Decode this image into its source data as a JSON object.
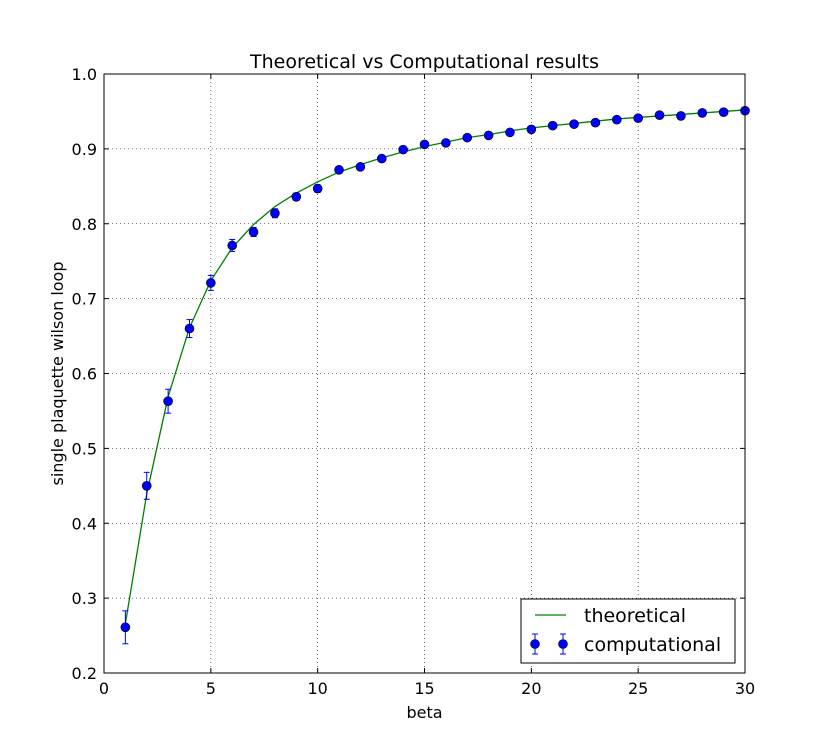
{
  "chart_data": {
    "type": "scatter",
    "title": "Theoretical vs Computational results",
    "xlabel": "beta",
    "ylabel": "single plaquette wilson loop",
    "xlim": [
      0,
      30
    ],
    "ylim": [
      0.2,
      1.0
    ],
    "xticks": [
      0,
      5,
      10,
      15,
      20,
      25,
      30
    ],
    "xtick_labels": [
      "0",
      "5",
      "10",
      "15",
      "20",
      "25",
      "30"
    ],
    "yticks": [
      0.2,
      0.3,
      0.4,
      0.5,
      0.6,
      0.7,
      0.8,
      0.9,
      1.0
    ],
    "ytick_labels": [
      "0.2",
      "0.3",
      "0.4",
      "0.5",
      "0.6",
      "0.7",
      "0.8",
      "0.9",
      "1.0"
    ],
    "grid": true,
    "legend_position": "bottom-right",
    "series": [
      {
        "name": "theoretical",
        "kind": "line",
        "color": "#008000",
        "x": [
          1,
          2,
          3,
          4,
          5,
          6,
          7,
          8,
          9,
          10,
          11,
          12,
          13,
          14,
          15,
          16,
          17,
          18,
          19,
          20,
          21,
          22,
          23,
          24,
          25,
          26,
          27,
          28,
          29,
          30
        ],
        "y": [
          0.266,
          0.439,
          0.569,
          0.661,
          0.724,
          0.768,
          0.799,
          0.823,
          0.841,
          0.856,
          0.869,
          0.879,
          0.888,
          0.896,
          0.903,
          0.909,
          0.915,
          0.919,
          0.924,
          0.928,
          0.931,
          0.934,
          0.937,
          0.94,
          0.942,
          0.944,
          0.946,
          0.948,
          0.95,
          0.952
        ]
      },
      {
        "name": "computational",
        "kind": "errorbar",
        "color": "#0000ff",
        "x": [
          1,
          2,
          3,
          4,
          5,
          6,
          7,
          8,
          9,
          10,
          11,
          12,
          13,
          14,
          15,
          16,
          17,
          18,
          19,
          20,
          21,
          22,
          23,
          24,
          25,
          26,
          27,
          28,
          29,
          30
        ],
        "y": [
          0.261,
          0.45,
          0.563,
          0.66,
          0.721,
          0.771,
          0.789,
          0.814,
          0.836,
          0.847,
          0.872,
          0.876,
          0.887,
          0.899,
          0.906,
          0.908,
          0.915,
          0.918,
          0.922,
          0.926,
          0.931,
          0.933,
          0.935,
          0.939,
          0.941,
          0.945,
          0.944,
          0.948,
          0.949,
          0.951
        ],
        "error": [
          0.022,
          0.018,
          0.016,
          0.012,
          0.01,
          0.008,
          0.006,
          0.006,
          0.005,
          0.005,
          0.004,
          0.004,
          0.004,
          0.003,
          0.003,
          0.003,
          0.003,
          0.003,
          0.003,
          0.003,
          0.003,
          0.003,
          0.003,
          0.003,
          0.003,
          0.003,
          0.003,
          0.003,
          0.003,
          0.003
        ]
      }
    ]
  }
}
